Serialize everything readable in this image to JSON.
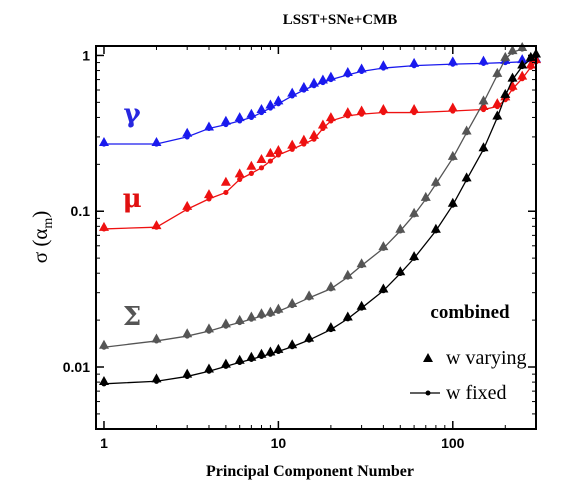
{
  "chart_data": {
    "type": "scatter",
    "title": "LSST+SNe+CMB",
    "xlabel": "Principal Component Number",
    "ylabel_main": "σ (α",
    "ylabel_sub": "m",
    "ylabel_close": ")",
    "xscale": "log",
    "yscale": "log",
    "xlim": [
      0.9,
      300
    ],
    "ylim": [
      0.004,
      1.15
    ],
    "xticks": [
      {
        "value": 1,
        "label": "1"
      },
      {
        "value": 10,
        "label": "10"
      },
      {
        "value": 100,
        "label": "100"
      }
    ],
    "yticks": [
      {
        "value": 0.01,
        "label": "0.01"
      },
      {
        "value": 0.1,
        "label": "0.1"
      },
      {
        "value": 1,
        "label": "1"
      }
    ],
    "grid": false,
    "legend": {
      "placement": "bottom-right",
      "header": "combined",
      "varying_label": "w varying",
      "fixed_label": "w fixed"
    },
    "series": [
      {
        "name": "γ",
        "color": "#1a1aee",
        "label_color": "#2727e0",
        "x": [
          1,
          2,
          3,
          4,
          5,
          6,
          7,
          8,
          9,
          10,
          12,
          14,
          16,
          18,
          20,
          25,
          30,
          40,
          60,
          100,
          150,
          200,
          250,
          300
        ],
        "varying": [
          0.27,
          0.27,
          0.31,
          0.34,
          0.37,
          0.39,
          0.41,
          0.44,
          0.47,
          0.5,
          0.56,
          0.61,
          0.65,
          0.68,
          0.71,
          0.76,
          0.8,
          0.84,
          0.87,
          0.89,
          0.9,
          0.91,
          0.92,
          0.93
        ],
        "fixed": [
          0.27,
          0.27,
          0.3,
          0.34,
          0.36,
          0.38,
          0.4,
          0.43,
          0.46,
          0.49,
          0.55,
          0.6,
          0.64,
          0.67,
          0.7,
          0.75,
          0.79,
          0.83,
          0.86,
          0.88,
          0.89,
          0.9,
          0.91,
          0.92
        ]
      },
      {
        "name": "μ",
        "color": "#ee1111",
        "label_color": "#e01010",
        "x": [
          1,
          2,
          3,
          4,
          5,
          6,
          7,
          8,
          9,
          10,
          12,
          14,
          16,
          18,
          20,
          25,
          30,
          40,
          60,
          100,
          150,
          180,
          200,
          220,
          250,
          280,
          300
        ],
        "varying": [
          0.077,
          0.079,
          0.105,
          0.125,
          0.15,
          0.17,
          0.19,
          0.21,
          0.23,
          0.24,
          0.26,
          0.28,
          0.3,
          0.35,
          0.39,
          0.42,
          0.43,
          0.44,
          0.44,
          0.45,
          0.46,
          0.48,
          0.53,
          0.62,
          0.72,
          0.85,
          0.92
        ],
        "fixed": [
          0.077,
          0.079,
          0.103,
          0.12,
          0.132,
          0.16,
          0.175,
          0.19,
          0.21,
          0.23,
          0.25,
          0.27,
          0.29,
          0.34,
          0.38,
          0.41,
          0.42,
          0.43,
          0.43,
          0.44,
          0.45,
          0.47,
          0.52,
          0.61,
          0.71,
          0.84,
          0.91
        ]
      },
      {
        "name": "Σ",
        "color": "#555555",
        "label_color": "#555555",
        "x": [
          1,
          2,
          3,
          4,
          5,
          6,
          7,
          8,
          9,
          10,
          12,
          15,
          20,
          25,
          30,
          40,
          50,
          60,
          70,
          80,
          100,
          120,
          150,
          180,
          200,
          220,
          250
        ],
        "varying": [
          0.0135,
          0.0148,
          0.016,
          0.0172,
          0.0185,
          0.0195,
          0.0205,
          0.0215,
          0.022,
          0.023,
          0.025,
          0.028,
          0.032,
          0.038,
          0.045,
          0.058,
          0.075,
          0.095,
          0.12,
          0.15,
          0.22,
          0.32,
          0.5,
          0.75,
          0.95,
          1.05,
          1.1
        ],
        "fixed": [
          0.0134,
          0.0147,
          0.0158,
          0.017,
          0.0183,
          0.0193,
          0.0203,
          0.0212,
          0.0218,
          0.0228,
          0.0248,
          0.0278,
          0.0318,
          0.0378,
          0.0448,
          0.0578,
          0.0748,
          0.0948,
          0.1195,
          0.1495,
          0.2195,
          0.3195,
          0.499,
          0.749,
          0.949,
          1.049,
          1.099
        ]
      },
      {
        "name": "",
        "color": "#000000",
        "label_color": "#000000",
        "x": [
          1,
          2,
          3,
          4,
          5,
          6,
          7,
          8,
          9,
          10,
          12,
          15,
          20,
          25,
          30,
          40,
          50,
          60,
          80,
          100,
          120,
          150,
          180,
          200,
          220,
          250,
          280,
          300
        ],
        "varying": [
          0.0079,
          0.0082,
          0.0088,
          0.0095,
          0.0102,
          0.0108,
          0.0113,
          0.0118,
          0.0122,
          0.0127,
          0.0136,
          0.015,
          0.0175,
          0.0205,
          0.024,
          0.031,
          0.04,
          0.05,
          0.075,
          0.11,
          0.16,
          0.25,
          0.4,
          0.55,
          0.7,
          0.85,
          0.95,
          1.0
        ],
        "fixed": [
          0.0078,
          0.0081,
          0.0087,
          0.0094,
          0.0101,
          0.0107,
          0.0112,
          0.0117,
          0.0121,
          0.0126,
          0.0135,
          0.0149,
          0.0174,
          0.0204,
          0.0239,
          0.0309,
          0.0399,
          0.0499,
          0.0749,
          0.1095,
          0.1595,
          0.2495,
          0.3995,
          0.5495,
          0.6995,
          0.8495,
          0.9495,
          0.995
        ]
      }
    ]
  }
}
